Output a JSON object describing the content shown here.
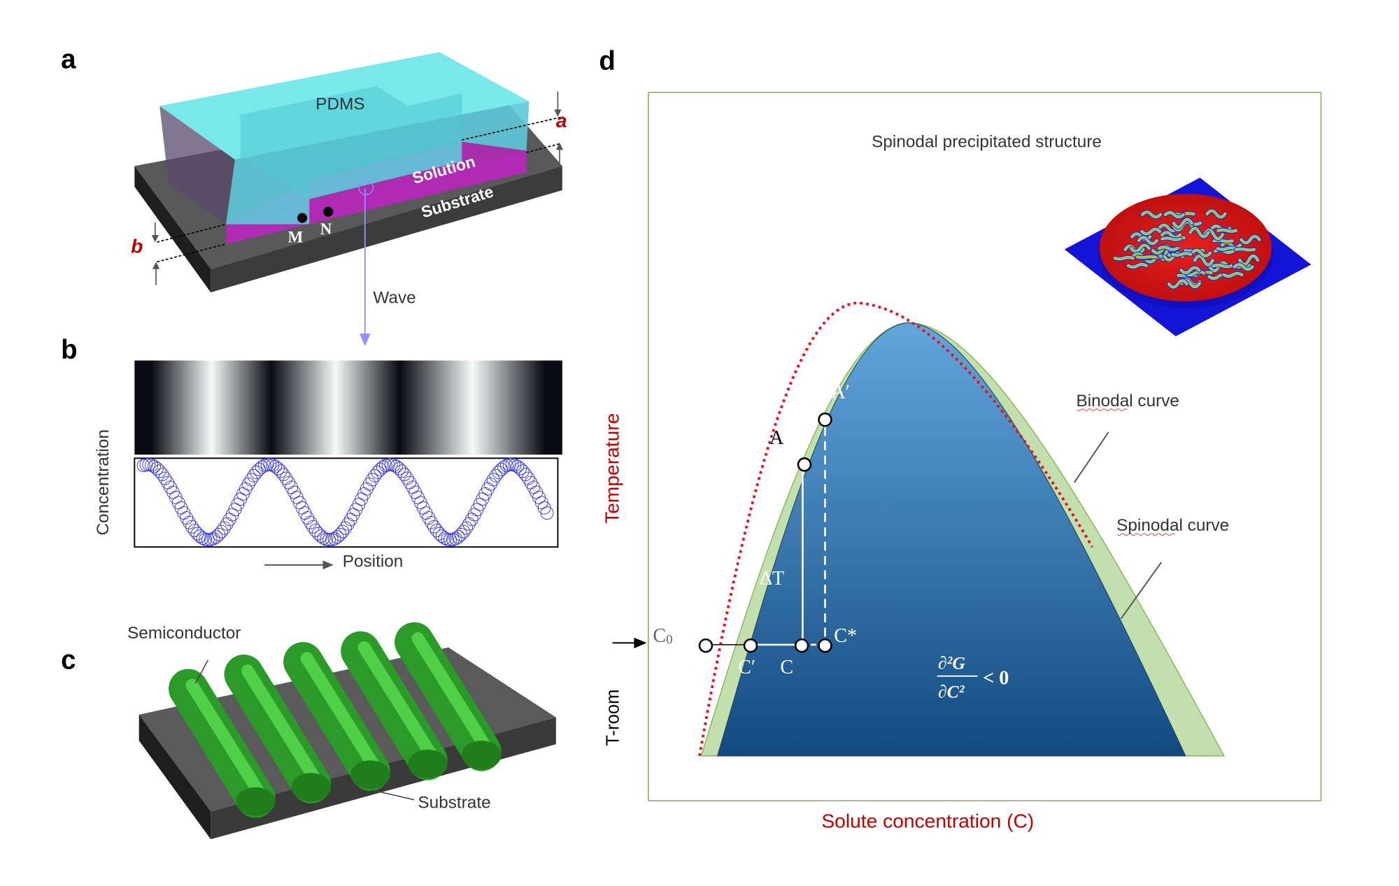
{
  "panels": {
    "a": "a",
    "b": "b",
    "c": "c",
    "d": "d"
  },
  "panel_a": {
    "pdms": "PDMS",
    "solution": "Solution",
    "substrate": "Substrate",
    "point_m": "M",
    "point_n": "N",
    "dim_a": "a",
    "dim_b": "b",
    "wave": "Wave"
  },
  "panel_b": {
    "y_label": "Concentration",
    "x_label": "Position"
  },
  "panel_c": {
    "semiconductor": "Semiconductor",
    "substrate": "Substrate"
  },
  "panel_d": {
    "inset_title": "Spinodal precipitated structure",
    "binodal": "Binodal curve",
    "spinodal": "Spinodal curve",
    "y_label": "Temperature",
    "t_room": "T-room",
    "x_label": "Solute concentration (C)",
    "point_a": "A",
    "point_a_prime": "A′",
    "delta_t": "ΔT",
    "c0": "C",
    "c0_sub": "0",
    "c_prime": "C′",
    "c": "C",
    "c_star": "C*",
    "formula_num": "∂²G",
    "formula_den": "∂C²",
    "formula_rel": "< 0"
  },
  "colors": {
    "pdms": "#5fe0e6",
    "solution": "#b02ab4",
    "substrate": "#454545",
    "semiconductor": "#2fa52a",
    "binodal_fill": "#c3dfae",
    "spinodal_top": "#5fa3d9",
    "spinodal_bottom": "#134a82",
    "dotted_curve": "#e0141e",
    "axis_red": "#c00000",
    "wave": "#8f8fff"
  }
}
